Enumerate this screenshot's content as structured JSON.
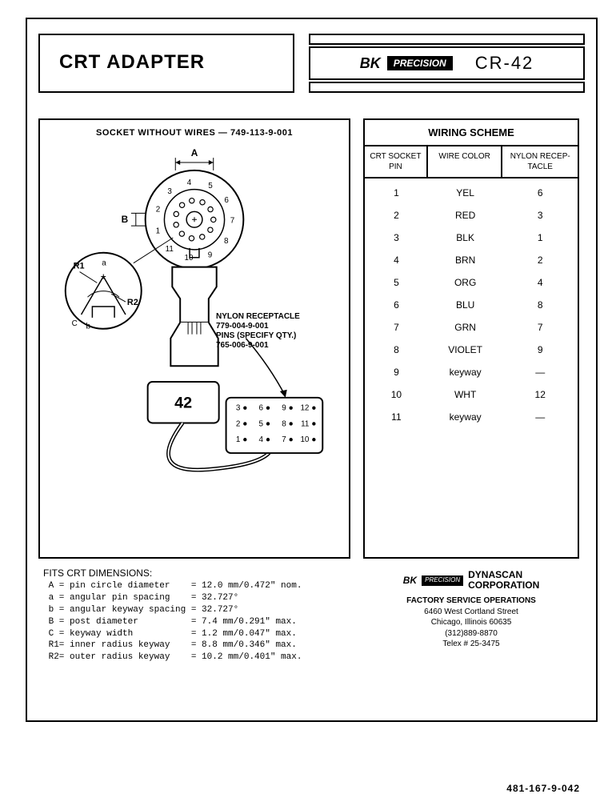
{
  "header": {
    "title": "CRT ADAPTER",
    "brand_bk": "BK",
    "brand_precision": "PRECISION",
    "model": "CR-42"
  },
  "diagram": {
    "socket_label": "SOCKET WITHOUT WIRES — 749-113-9-001",
    "receptacle_label1": "NYLON RECEPTACLE",
    "receptacle_part1": "779-004-9-001",
    "receptacle_label2": "PINS (SPECIFY QTY.)",
    "receptacle_part2": "765-006-9-001",
    "connector_number": "42",
    "dim_A": "A",
    "dim_B": "B",
    "dim_C": "C",
    "dim_a": "a",
    "dim_b": "b",
    "R1": "R1",
    "R2": "R2",
    "socket_pins": [
      "1",
      "2",
      "3",
      "4",
      "5",
      "6",
      "7",
      "8",
      "9",
      "10",
      "11"
    ],
    "recep_pins": [
      "3",
      "6",
      "9",
      "12",
      "2",
      "5",
      "8",
      "11",
      "1",
      "4",
      "7",
      "10"
    ]
  },
  "wiring": {
    "title": "WIRING SCHEME",
    "head_pin": "CRT SOCKET PIN",
    "head_wire": "WIRE COLOR",
    "head_recep": "NYLON RECEP-TACLE",
    "rows": [
      {
        "pin": "1",
        "wire": "YEL",
        "recep": "6"
      },
      {
        "pin": "2",
        "wire": "RED",
        "recep": "3"
      },
      {
        "pin": "3",
        "wire": "BLK",
        "recep": "1"
      },
      {
        "pin": "4",
        "wire": "BRN",
        "recep": "2"
      },
      {
        "pin": "5",
        "wire": "ORG",
        "recep": "4"
      },
      {
        "pin": "6",
        "wire": "BLU",
        "recep": "8"
      },
      {
        "pin": "7",
        "wire": "GRN",
        "recep": "7"
      },
      {
        "pin": "8",
        "wire": "VIOLET",
        "recep": "9"
      },
      {
        "pin": "9",
        "wire": "keyway",
        "recep": "—"
      },
      {
        "pin": "10",
        "wire": "WHT",
        "recep": "12"
      },
      {
        "pin": "11",
        "wire": "keyway",
        "recep": "—"
      }
    ]
  },
  "dimensions": {
    "title": "FITS CRT DIMENSIONS:",
    "rows": [
      " A = pin circle diameter    = 12.0 mm/0.472\" nom.",
      " a = angular pin spacing    = 32.727°",
      " b = angular keyway spacing = 32.727°",
      " B = post diameter          = 7.4 mm/0.291\" max.",
      " C = keyway width           = 1.2 mm/0.047\" max.",
      " R1= inner radius keyway    = 8.8 mm/0.346\" max.",
      " R2= outer radius keyway    = 10.2 mm/0.401\" max."
    ]
  },
  "company": {
    "brand_bk": "BK",
    "brand_precision": "PRECISION",
    "dynascan_l1": "DYNASCAN",
    "dynascan_l2": "CORPORATION",
    "ops": "FACTORY SERVICE OPERATIONS",
    "addr1": "6460 West Cortland Street",
    "addr2": "Chicago, Illinois 60635",
    "phone": "(312)889-8870",
    "telex": "Telex # 25-3475"
  },
  "docnum": "481-167-9-042",
  "colors": {
    "ink": "#000000",
    "bg": "#ffffff"
  }
}
